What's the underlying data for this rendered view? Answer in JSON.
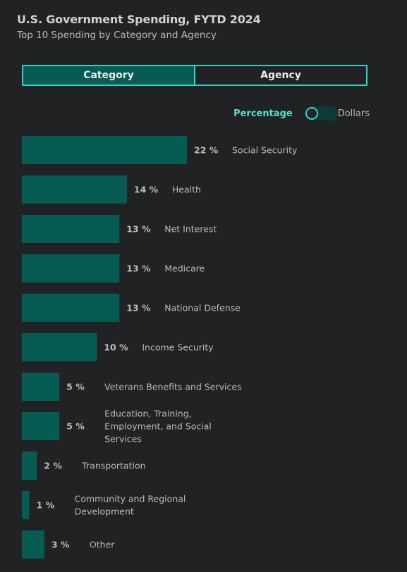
{
  "header": {
    "title": "U.S. Government Spending, FYTD 2024",
    "subtitle": "Top 10 Spending by Category and Agency"
  },
  "view_toggle": {
    "options": [
      "Category",
      "Agency"
    ],
    "selected": "Category"
  },
  "unit_switch": {
    "on_label": "Percentage",
    "off_label": "Dollars",
    "selected": "Percentage"
  },
  "colors": {
    "bar": "#065c53",
    "accent": "#2fd6c7",
    "background": "#202223"
  },
  "chart_data": {
    "type": "bar",
    "orientation": "horizontal",
    "title": "U.S. Government Spending, FYTD 2024",
    "subtitle": "Top 10 Spending by Category and Agency",
    "xlabel": "",
    "ylabel": "",
    "xlim": [
      0,
      22
    ],
    "grid": false,
    "categories": [
      "Social Security",
      "Health",
      "Net Interest",
      "Medicare",
      "National Defense",
      "Income Security",
      "Veterans Benefits and Services",
      "Education, Training, Employment, and Social Services",
      "Transportation",
      "Community and Regional Development",
      "Other"
    ],
    "category_lines": [
      [
        "Social Security"
      ],
      [
        "Health"
      ],
      [
        "Net Interest"
      ],
      [
        "Medicare"
      ],
      [
        "National Defense"
      ],
      [
        "Income Security"
      ],
      [
        "Veterans Benefits and Services"
      ],
      [
        "Education, Training,",
        "Employment, and Social",
        "Services"
      ],
      [
        "Transportation"
      ],
      [
        "Community and Regional",
        "Development"
      ],
      [
        "Other"
      ]
    ],
    "values": [
      22,
      14,
      13,
      13,
      13,
      10,
      5,
      5,
      2,
      1,
      3
    ],
    "value_labels": [
      "22 %",
      "14 %",
      "13 %",
      "13 %",
      "13 %",
      "10 %",
      "5 %",
      "5 %",
      "2 %",
      "1 %",
      "3 %"
    ]
  }
}
